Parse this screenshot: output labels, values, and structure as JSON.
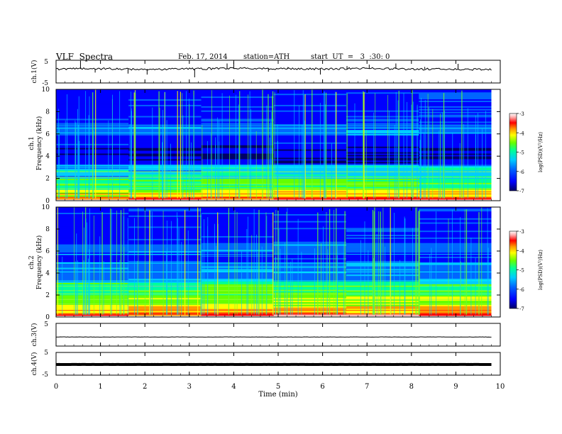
{
  "header": {
    "title": "VLF  Spectra",
    "date": "Feb. 17, 2014",
    "station": "station=ATH",
    "start": "start  UT  =   3  :30: 0"
  },
  "colors": {
    "colormap": [
      "#000066",
      "#0000ff",
      "#0066ff",
      "#00ccff",
      "#00ff99",
      "#66ff00",
      "#ffff00",
      "#ff9900",
      "#ff0000",
      "#ffaaaa",
      "#ffffff"
    ]
  },
  "chart_data": [
    {
      "type": "line",
      "panel": "ch1",
      "ylabel": "ch.1(V)",
      "ylim": [
        -5,
        5
      ],
      "yticks": [
        "5",
        "-5"
      ],
      "x": [
        0,
        1,
        2,
        3,
        4,
        5,
        6,
        7,
        8,
        9,
        9.8
      ],
      "values": [
        1.2,
        1.3,
        1.0,
        1.2,
        1.4,
        1.3,
        1.2,
        1.4,
        1.1,
        1.1,
        0.9
      ]
    },
    {
      "type": "heatmap",
      "panel": "ch1-spectrogram",
      "ylabel": [
        "ch.1",
        "Frequency  (kHz)"
      ],
      "ylim": [
        0,
        10
      ],
      "yticks": [
        "0",
        "2",
        "4",
        "6",
        "8",
        "10"
      ],
      "colorbar": {
        "label": "log(PSD)(V²/Hz)",
        "range": [
          -7,
          -3
        ],
        "ticks": [
          "-3",
          "-4",
          "-5",
          "-6",
          "-7"
        ]
      }
    },
    {
      "type": "heatmap",
      "panel": "ch2-spectrogram",
      "ylabel": [
        "ch.2",
        "Frequency  (kHz)"
      ],
      "ylim": [
        0,
        10
      ],
      "yticks": [
        "0",
        "2",
        "4",
        "6",
        "8",
        "10"
      ],
      "colorbar": {
        "label": "log(PSD)(V²/Hz)",
        "range": [
          -7,
          -3
        ],
        "ticks": [
          "-3",
          "-4",
          "-5",
          "-6",
          "-7"
        ]
      }
    },
    {
      "type": "line",
      "panel": "ch3",
      "ylabel": "ch.3(V)",
      "ylim": [
        -5,
        5
      ],
      "yticks": [
        "5"
      ],
      "x": [
        0,
        9.8
      ],
      "values": [
        -1.0,
        -1.0
      ]
    },
    {
      "type": "line",
      "panel": "ch4",
      "ylabel": "ch.4(V)",
      "ylim": [
        -5,
        5
      ],
      "yticks": [
        "5",
        "-5"
      ],
      "x": [
        0,
        9.8
      ],
      "values": [
        -0.3,
        -0.3
      ]
    }
  ],
  "xaxis": {
    "label": "Time  (min)",
    "range": [
      0,
      10
    ],
    "ticks": [
      "0",
      "1",
      "2",
      "3",
      "4",
      "5",
      "6",
      "7",
      "8",
      "9",
      "10"
    ],
    "data_end": 9.8
  }
}
